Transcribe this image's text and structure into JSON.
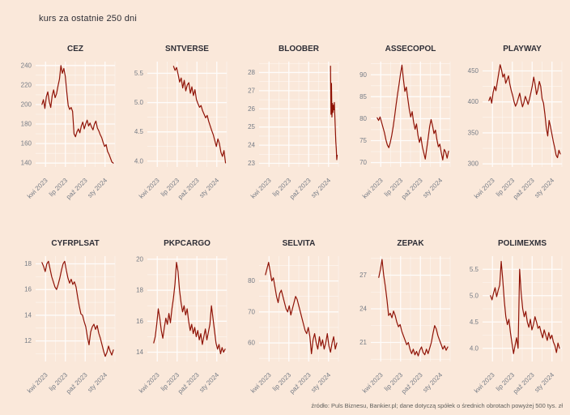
{
  "page": {
    "title": "kurs za ostatnie 250 dni",
    "source_note": "źródło: Puls Biznesu, Bankier.pl; dane dotyczą spółek o średnich obrotach powyżej 500 tys. zł",
    "colors": {
      "background": "#fae8da",
      "line": "#8f1206",
      "grid": "#fefcfa",
      "axis_text": "#767c86",
      "title_text": "#2e2e36",
      "source_text": "#60605c"
    }
  },
  "chart_data": [
    {
      "type": "line",
      "title": "CEZ",
      "ylim": [
        136,
        244
      ],
      "yticks": [
        "140",
        "160",
        "180",
        "200",
        "220",
        "240"
      ],
      "xticks": [
        "kwi 2023",
        "lip 2023",
        "paź 2023",
        "sty 2024"
      ],
      "xtick_pos": [
        0.125,
        0.375,
        0.625,
        0.875
      ],
      "x_range": [
        0.08,
        0.98
      ],
      "values": [
        200,
        205,
        196,
        208,
        213,
        203,
        197,
        209,
        215,
        207,
        211,
        219,
        226,
        240,
        232,
        237,
        229,
        213,
        199,
        195,
        197,
        193,
        170,
        167,
        172,
        175,
        171,
        178,
        182,
        175,
        180,
        184,
        178,
        181,
        177,
        174,
        180,
        183,
        176,
        173,
        169,
        166,
        161,
        157,
        159,
        152,
        149,
        145,
        141,
        140
      ]
    },
    {
      "type": "line",
      "title": "SNTVERSE",
      "ylim": [
        3.9,
        5.7
      ],
      "yticks": [
        "4.0",
        "4.5",
        "5.0",
        "5.5"
      ],
      "xticks": [
        "kwi 2023",
        "lip 2023",
        "paź 2023",
        "sty 2024"
      ],
      "xtick_pos": [
        0.125,
        0.375,
        0.625,
        0.875
      ],
      "x_range": [
        0.33,
        0.985
      ],
      "values": [
        5.62,
        5.55,
        5.6,
        5.48,
        5.35,
        5.42,
        5.25,
        5.38,
        5.2,
        5.3,
        5.34,
        5.16,
        5.27,
        5.12,
        5.22,
        5.05,
        4.98,
        4.92,
        4.95,
        4.86,
        4.8,
        4.74,
        4.78,
        4.68,
        4.6,
        4.52,
        4.45,
        4.35,
        4.25,
        4.38,
        4.3,
        4.15,
        4.08,
        4.18,
        3.97
      ]
    },
    {
      "type": "line",
      "title": "BLOOBER",
      "ylim": [
        22.8,
        28.6
      ],
      "yticks": [
        "23",
        "24",
        "25",
        "26",
        "27",
        "28"
      ],
      "xticks": [
        "kwi 2023",
        "lip 2023",
        "paź 2023",
        "sty 2024"
      ],
      "xtick_pos": [
        0.125,
        0.375,
        0.625,
        0.875
      ],
      "x_range": [
        0.9,
        0.985
      ],
      "values": [
        28.35,
        25.7,
        27.4,
        25.55,
        26.3,
        25.8,
        26.2,
        25.95,
        26.35,
        25.6,
        24.9,
        24.2,
        23.8,
        23.2,
        23.45
      ]
    },
    {
      "type": "line",
      "title": "ASSECOPOL",
      "ylim": [
        69,
        93
      ],
      "yticks": [
        "70",
        "75",
        "80",
        "85",
        "90"
      ],
      "xticks": [
        "kwi 2023",
        "lip 2023",
        "paź 2023",
        "sty 2024"
      ],
      "xtick_pos": [
        0.125,
        0.375,
        0.625,
        0.875
      ],
      "x_range": [
        0.08,
        0.98
      ],
      "values": [
        80.2,
        79.6,
        80.4,
        79.2,
        78.0,
        76.8,
        75.2,
        74.0,
        73.4,
        74.6,
        76.2,
        78.2,
        80.6,
        83.2,
        85.6,
        87.8,
        90.2,
        92.2,
        89.0,
        86.2,
        87.2,
        84.6,
        82.2,
        80.4,
        81.6,
        79.2,
        77.6,
        78.8,
        76.2,
        74.6,
        75.8,
        73.6,
        72.2,
        70.8,
        73.2,
        75.6,
        78.2,
        79.8,
        78.4,
        76.6,
        77.4,
        75.2,
        73.6,
        74.2,
        72.2,
        70.6,
        73.0,
        72.4,
        71.0,
        72.6
      ]
    },
    {
      "type": "line",
      "title": "PLAYWAY",
      "ylim": [
        295,
        465
      ],
      "yticks": [
        "300",
        "350",
        "400",
        "450"
      ],
      "xticks": [
        "kwi 2023",
        "lip 2023",
        "paź 2023",
        "sty 2024"
      ],
      "xtick_pos": [
        0.125,
        0.375,
        0.625,
        0.875
      ],
      "x_range": [
        0.08,
        0.98
      ],
      "values": [
        402,
        408,
        398,
        415,
        425,
        418,
        432,
        446,
        460,
        452,
        440,
        445,
        430,
        436,
        442,
        428,
        418,
        410,
        400,
        393,
        398,
        406,
        414,
        402,
        392,
        399,
        409,
        403,
        396,
        405,
        415,
        426,
        440,
        428,
        412,
        420,
        433,
        425,
        405,
        398,
        380,
        358,
        345,
        370,
        360,
        348,
        336,
        326,
        314,
        310,
        322,
        316
      ]
    },
    {
      "type": "line",
      "title": "CYFRPLSAT",
      "ylim": [
        10.4,
        18.6
      ],
      "yticks": [
        "12",
        "14",
        "16",
        "18"
      ],
      "xticks": [
        "kwi 2023",
        "lip 2023",
        "paź 2023",
        "sty 2024"
      ],
      "xtick_pos": [
        0.125,
        0.375,
        0.625,
        0.875
      ],
      "x_range": [
        0.08,
        0.98
      ],
      "values": [
        18.1,
        17.8,
        17.4,
        18.0,
        18.2,
        17.6,
        17.0,
        16.6,
        16.2,
        16.0,
        16.4,
        16.9,
        17.5,
        18.0,
        18.2,
        17.5,
        16.9,
        16.5,
        16.8,
        16.4,
        16.6,
        16.2,
        15.4,
        14.7,
        14.1,
        14.0,
        13.5,
        13.1,
        12.3,
        11.7,
        12.7,
        13.1,
        13.3,
        12.9,
        13.2,
        12.6,
        12.2,
        11.7,
        11.2,
        10.8,
        11.1,
        11.6,
        11.2,
        10.9,
        11.3
      ]
    },
    {
      "type": "line",
      "title": "PKPCARGO",
      "ylim": [
        13.4,
        20.2
      ],
      "yticks": [
        "14",
        "16",
        "18",
        "20"
      ],
      "xticks": [
        "kwi 2023",
        "lip 2023",
        "paź 2023",
        "sty 2024"
      ],
      "xtick_pos": [
        0.125,
        0.375,
        0.625,
        0.875
      ],
      "x_range": [
        0.08,
        0.98
      ],
      "values": [
        14.6,
        15.0,
        15.8,
        16.8,
        16.2,
        15.4,
        14.9,
        15.6,
        16.2,
        15.8,
        16.5,
        15.9,
        16.8,
        17.5,
        18.4,
        19.8,
        19.2,
        18.0,
        17.2,
        16.6,
        17.0,
        16.4,
        16.8,
        16.0,
        15.4,
        15.8,
        15.2,
        15.6,
        15.0,
        15.4,
        14.8,
        15.2,
        14.5,
        15.0,
        15.5,
        14.8,
        15.3,
        15.8,
        17.0,
        16.2,
        15.4,
        14.6,
        14.2,
        14.5,
        13.9,
        14.3,
        14.0,
        14.2
      ]
    },
    {
      "type": "line",
      "title": "SELVITA",
      "ylim": [
        54,
        88
      ],
      "yticks": [
        "60",
        "70",
        "80"
      ],
      "xticks": [
        "kwi 2023",
        "lip 2023",
        "paź 2023",
        "sty 2024"
      ],
      "xtick_pos": [
        0.125,
        0.375,
        0.625,
        0.875
      ],
      "x_range": [
        0.08,
        0.98
      ],
      "values": [
        82,
        84,
        86,
        83,
        80,
        81,
        78,
        75,
        73,
        76,
        77,
        75,
        73,
        71,
        70,
        72,
        69,
        71,
        73,
        75,
        74,
        72,
        70,
        68,
        66,
        64,
        63,
        65,
        62,
        56.5,
        61,
        63,
        60,
        58,
        62,
        59,
        61,
        58,
        60,
        63,
        59,
        57,
        60,
        62,
        58,
        60
      ]
    },
    {
      "type": "line",
      "title": "ZEPAK",
      "ylim": [
        19.3,
        28.7
      ],
      "yticks": [
        "21",
        "24",
        "27"
      ],
      "xticks": [
        "kwi 2023",
        "lip 2023",
        "paź 2023",
        "sty 2024"
      ],
      "xtick_pos": [
        0.125,
        0.375,
        0.625,
        0.875
      ],
      "x_range": [
        0.1,
        0.97
      ],
      "values": [
        26.8,
        27.5,
        28.4,
        27.0,
        26.0,
        24.8,
        23.4,
        23.6,
        23.2,
        23.8,
        23.4,
        22.8,
        22.4,
        22.6,
        22.0,
        21.6,
        21.2,
        20.8,
        21.0,
        20.4,
        20.0,
        20.4,
        19.9,
        20.2,
        19.8,
        20.3,
        20.6,
        20.1,
        19.9,
        20.4,
        20.0,
        20.5,
        21.0,
        21.8,
        22.5,
        22.2,
        21.6,
        21.2,
        20.8,
        20.4,
        20.7,
        20.3,
        20.6
      ]
    },
    {
      "type": "line",
      "title": "POLIMEXMS",
      "ylim": [
        3.75,
        5.75
      ],
      "yticks": [
        "4.0",
        "4.5",
        "5.0",
        "5.5"
      ],
      "xticks": [
        "kwi 2023",
        "lip 2023",
        "paź 2023",
        "sty 2024"
      ],
      "xtick_pos": [
        0.125,
        0.375,
        0.625,
        0.875
      ],
      "x_range": [
        0.1,
        0.97
      ],
      "values": [
        5.0,
        4.92,
        5.05,
        5.15,
        4.98,
        5.1,
        5.2,
        5.65,
        5.3,
        4.9,
        4.6,
        4.45,
        4.55,
        4.3,
        4.1,
        3.9,
        4.05,
        4.2,
        4.0,
        5.5,
        5.05,
        4.75,
        4.6,
        4.7,
        4.5,
        4.4,
        4.55,
        4.35,
        4.45,
        4.6,
        4.5,
        4.38,
        4.42,
        4.3,
        4.2,
        4.35,
        4.25,
        4.15,
        4.3,
        4.18,
        4.25,
        4.12,
        4.05,
        3.92,
        4.1,
        4.0
      ]
    }
  ]
}
